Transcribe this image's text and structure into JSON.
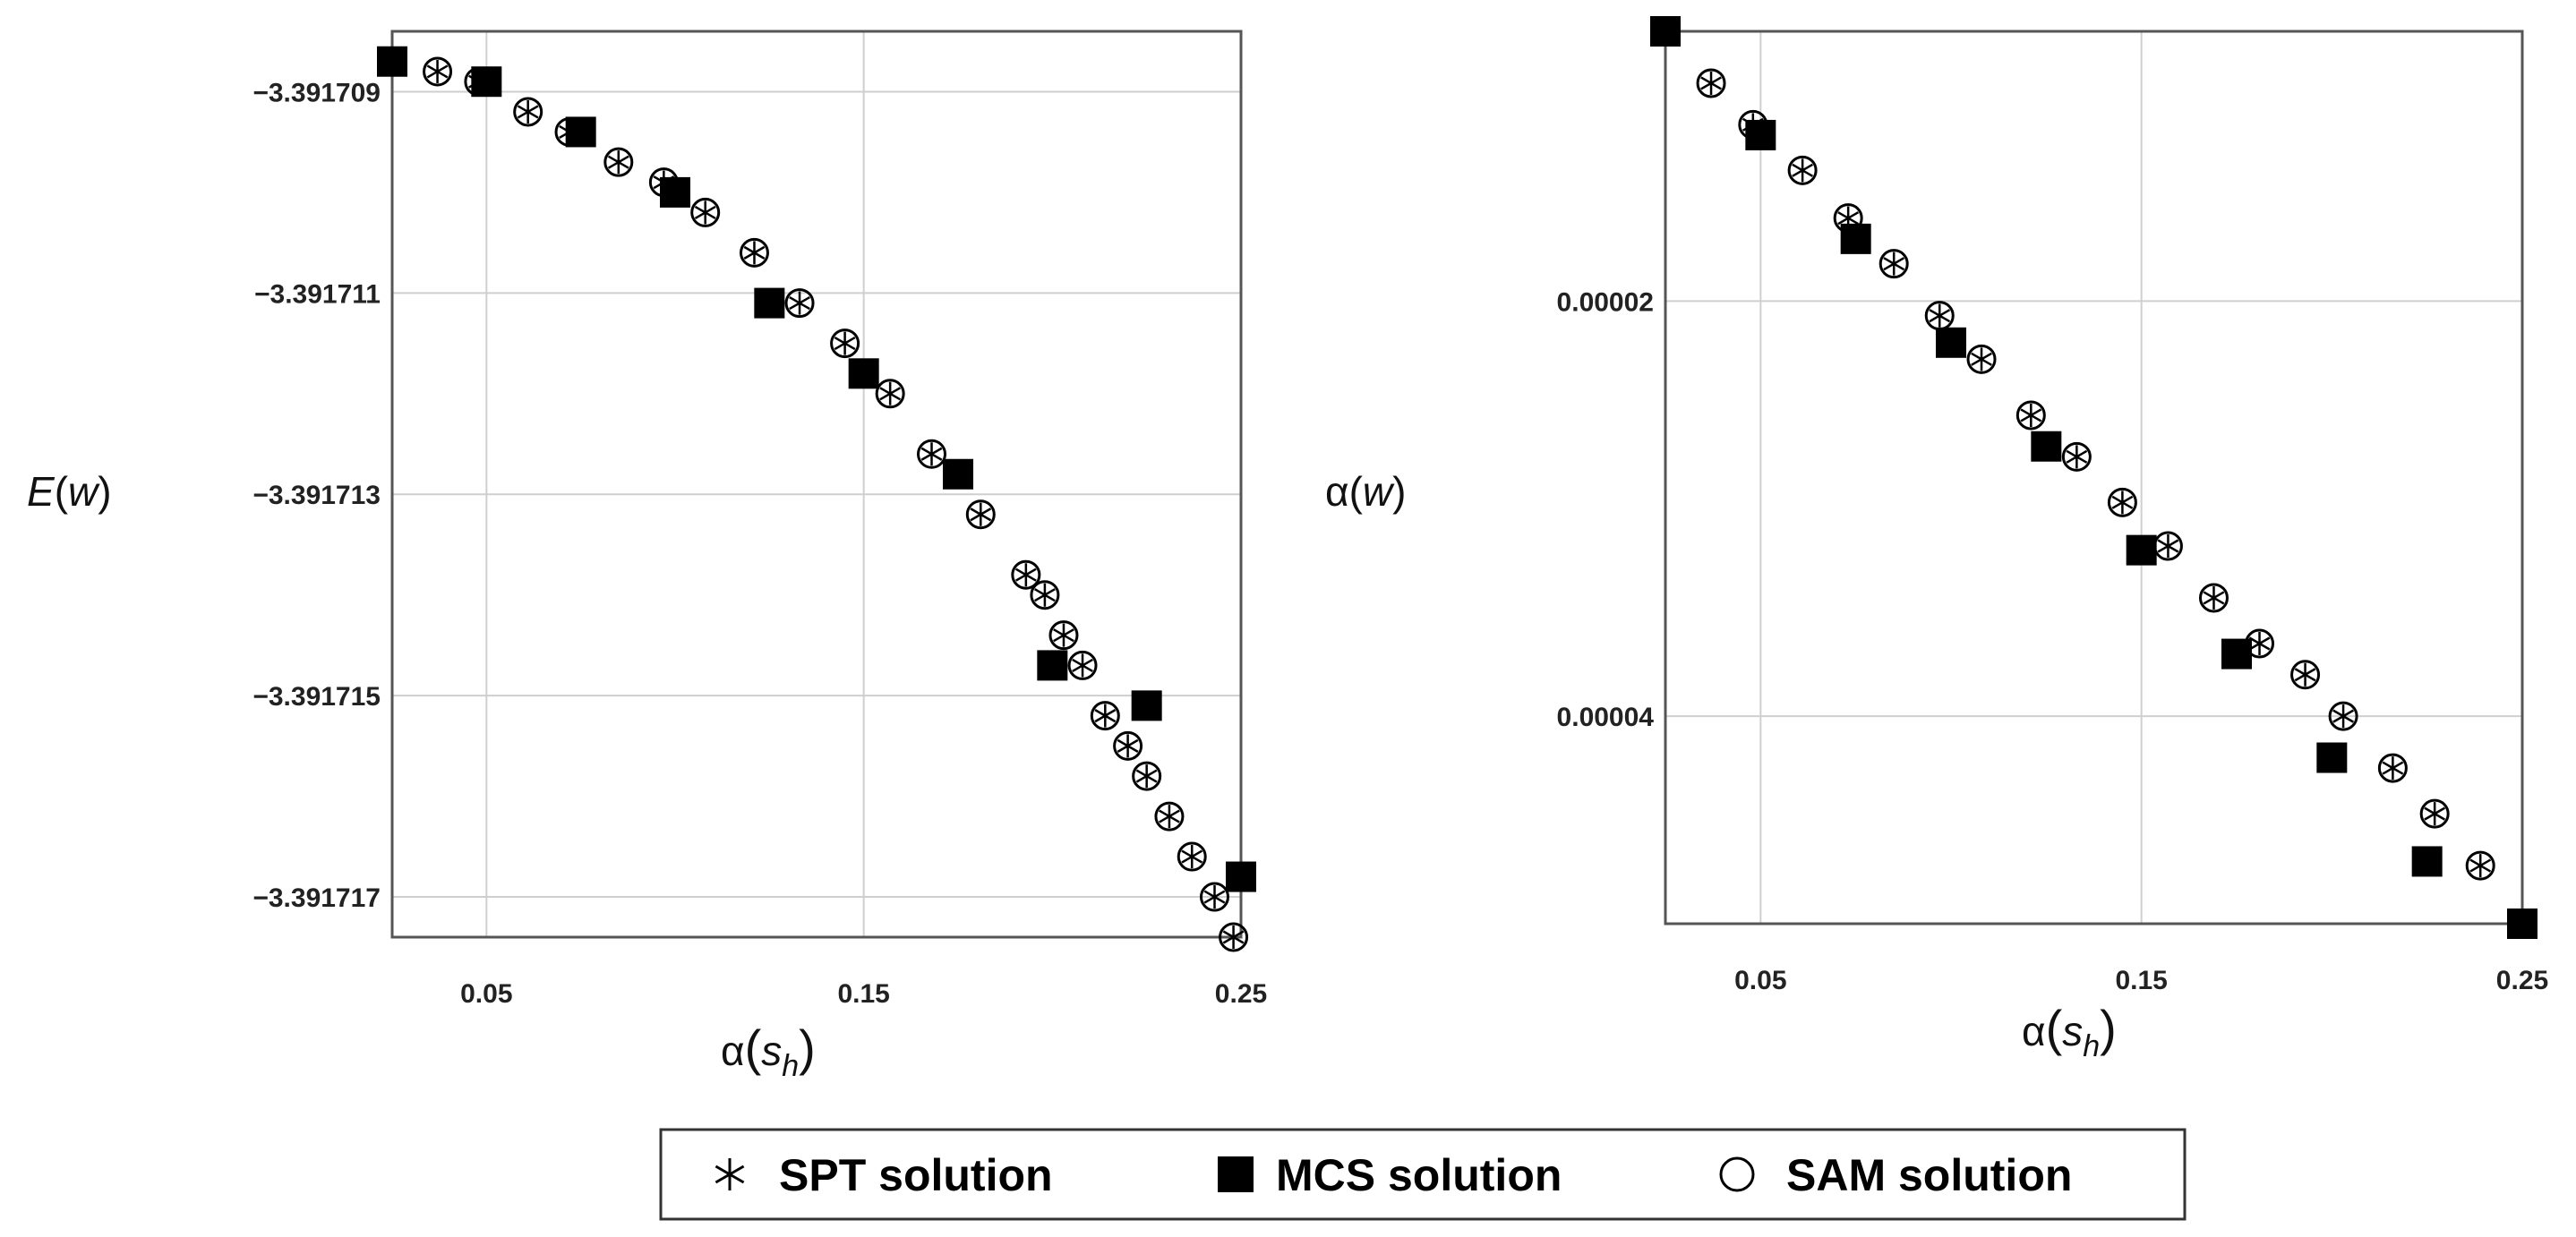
{
  "chart_data": [
    {
      "type": "scatter",
      "panel": "left",
      "ylabel": "E(w)",
      "xlabel": "α(s_h)",
      "xlim": [
        0.025,
        0.25
      ],
      "ylim": [
        -3.3917174,
        -3.3917084
      ],
      "y_axis_inverted": false,
      "grid": true,
      "x_ticks": [
        {
          "value": 0.05,
          "label": "0.05"
        },
        {
          "value": 0.15,
          "label": "0.15"
        },
        {
          "value": 0.25,
          "label": "0.25"
        }
      ],
      "y_ticks": [
        {
          "value": -3.391709,
          "label": "−3.391709"
        },
        {
          "value": -3.391711,
          "label": "−3.391711"
        },
        {
          "value": -3.391713,
          "label": "−3.391713"
        },
        {
          "value": -3.391715,
          "label": "−3.391715"
        },
        {
          "value": -3.391717,
          "label": "−3.391717"
        }
      ],
      "series": [
        {
          "name": "SPT solution",
          "marker": "star",
          "x": [
            0.025,
            0.037,
            0.048,
            0.061,
            0.072,
            0.085,
            0.097,
            0.108,
            0.121,
            0.133,
            0.145,
            0.157,
            0.168,
            0.181,
            0.193,
            0.198,
            0.203,
            0.208,
            0.214,
            0.22,
            0.225,
            0.231,
            0.237,
            0.243,
            0.248
          ],
          "y": [
            -3.3917087,
            -3.3917088,
            -3.3917089,
            -3.3917092,
            -3.3917094,
            -3.3917097,
            -3.3917099,
            -3.3917102,
            -3.3917106,
            -3.3917111,
            -3.3917115,
            -3.391712,
            -3.3917126,
            -3.3917132,
            -3.3917138,
            -3.391714,
            -3.3917144,
            -3.3917147,
            -3.3917152,
            -3.3917155,
            -3.3917158,
            -3.3917162,
            -3.3917166,
            -3.391717,
            -3.3917174
          ]
        },
        {
          "name": "MCS solution",
          "marker": "square",
          "x": [
            0.025,
            0.05,
            0.075,
            0.1,
            0.125,
            0.15,
            0.175,
            0.2,
            0.225,
            0.25
          ],
          "y": [
            -3.3917087,
            -3.3917089,
            -3.3917094,
            -3.39171,
            -3.3917111,
            -3.3917118,
            -3.3917128,
            -3.3917147,
            -3.3917151,
            -3.3917168
          ]
        },
        {
          "name": "SAM solution",
          "marker": "circle",
          "x": [
            0.025,
            0.037,
            0.048,
            0.061,
            0.072,
            0.085,
            0.097,
            0.108,
            0.121,
            0.133,
            0.145,
            0.157,
            0.168,
            0.181,
            0.193,
            0.198,
            0.203,
            0.208,
            0.214,
            0.22,
            0.225,
            0.231,
            0.237,
            0.243,
            0.248
          ],
          "y": [
            -3.3917087,
            -3.3917088,
            -3.3917089,
            -3.3917092,
            -3.3917094,
            -3.3917097,
            -3.3917099,
            -3.3917102,
            -3.3917106,
            -3.3917111,
            -3.3917115,
            -3.391712,
            -3.3917126,
            -3.3917132,
            -3.3917138,
            -3.391714,
            -3.3917144,
            -3.3917147,
            -3.3917152,
            -3.3917155,
            -3.3917158,
            -3.3917162,
            -3.3917166,
            -3.391717,
            -3.3917174
          ]
        }
      ]
    },
    {
      "type": "scatter",
      "panel": "right",
      "ylabel": "α(w)",
      "xlabel": "α(s_h)",
      "xlim": [
        0.025,
        0.25
      ],
      "ylim": [
        7e-06,
        5e-05
      ],
      "y_axis_inverted": true,
      "grid": true,
      "x_ticks": [
        {
          "value": 0.05,
          "label": "0.05"
        },
        {
          "value": 0.15,
          "label": "0.15"
        },
        {
          "value": 0.25,
          "label": "0.25"
        }
      ],
      "y_ticks": [
        {
          "value": 2e-05,
          "label": "0.00002"
        },
        {
          "value": 4e-05,
          "label": "0.00004"
        }
      ],
      "series": [
        {
          "name": "SPT solution",
          "marker": "star",
          "x": [
            0.025,
            0.037,
            0.048,
            0.061,
            0.073,
            0.085,
            0.097,
            0.108,
            0.121,
            0.133,
            0.145,
            0.157,
            0.169,
            0.181,
            0.193,
            0.203,
            0.216,
            0.227,
            0.239
          ],
          "y": [
            7e-06,
            9.5e-06,
            1.15e-05,
            1.37e-05,
            1.6e-05,
            1.82e-05,
            2.07e-05,
            2.28e-05,
            2.55e-05,
            2.75e-05,
            2.97e-05,
            3.18e-05,
            3.43e-05,
            3.65e-05,
            3.8e-05,
            4e-05,
            4.25e-05,
            4.47e-05,
            4.72e-05
          ]
        },
        {
          "name": "MCS solution",
          "marker": "square",
          "x": [
            0.025,
            0.05,
            0.075,
            0.1,
            0.125,
            0.15,
            0.175,
            0.2,
            0.225,
            0.25
          ],
          "y": [
            7e-06,
            1.2e-05,
            1.7e-05,
            2.2e-05,
            2.7e-05,
            3.2e-05,
            3.7e-05,
            4.2e-05,
            4.7e-05,
            5e-05
          ]
        },
        {
          "name": "SAM solution",
          "marker": "circle",
          "x": [
            0.025,
            0.037,
            0.048,
            0.061,
            0.073,
            0.085,
            0.097,
            0.108,
            0.121,
            0.133,
            0.145,
            0.157,
            0.169,
            0.181,
            0.193,
            0.203,
            0.216,
            0.227,
            0.239
          ],
          "y": [
            7e-06,
            9.5e-06,
            1.15e-05,
            1.37e-05,
            1.6e-05,
            1.82e-05,
            2.07e-05,
            2.28e-05,
            2.55e-05,
            2.75e-05,
            2.97e-05,
            3.18e-05,
            3.43e-05,
            3.65e-05,
            3.8e-05,
            4e-05,
            4.25e-05,
            4.47e-05,
            4.72e-05
          ]
        }
      ]
    }
  ],
  "legend": {
    "placement": "bottom-center",
    "items": [
      {
        "label": "SPT solution",
        "marker": "star"
      },
      {
        "label": "MCS solution",
        "marker": "square"
      },
      {
        "label": "SAM solution",
        "marker": "circle"
      }
    ]
  },
  "labels": {
    "left_ylabel_main": "E",
    "left_ylabel_arg": "w",
    "right_ylabel_main": "α",
    "right_ylabel_arg": "w",
    "xlabel_main": "α",
    "xlabel_arg": "s",
    "xlabel_sub": "h"
  }
}
